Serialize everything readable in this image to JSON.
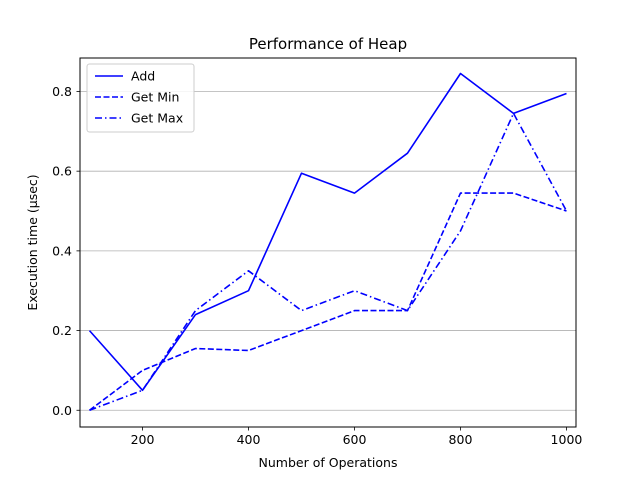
{
  "chart_data": {
    "type": "line",
    "title": "Performance of Heap",
    "xlabel": "Number of Operations",
    "ylabel": "Execution time (μsec)",
    "x": [
      100,
      200,
      300,
      400,
      500,
      600,
      700,
      800,
      900,
      1000
    ],
    "xlim": [
      82,
      1018
    ],
    "ylim": [
      -0.042,
      0.884
    ],
    "xticks": [
      200,
      400,
      600,
      800,
      1000
    ],
    "yticks": [
      0.0,
      0.2,
      0.4,
      0.6,
      0.8
    ],
    "ytick_labels": [
      "0.0",
      "0.2",
      "0.4",
      "0.6",
      "0.8"
    ],
    "grid": "horizontal",
    "legend_position": "upper-left",
    "color": "#0000ff",
    "series": [
      {
        "name": "Add",
        "linestyle": "solid",
        "values": [
          0.2,
          0.05,
          0.24,
          0.3,
          0.595,
          0.545,
          0.645,
          0.845,
          0.745,
          0.795
        ]
      },
      {
        "name": "Get Min",
        "linestyle": "dashed",
        "values": [
          0.0,
          0.1,
          0.155,
          0.15,
          0.2,
          0.25,
          0.25,
          0.545,
          0.545,
          0.5
        ]
      },
      {
        "name": "Get Max",
        "linestyle": "dashdot",
        "values": [
          0.0,
          0.05,
          0.25,
          0.35,
          0.25,
          0.3,
          0.25,
          0.45,
          0.745,
          0.5
        ]
      }
    ]
  }
}
